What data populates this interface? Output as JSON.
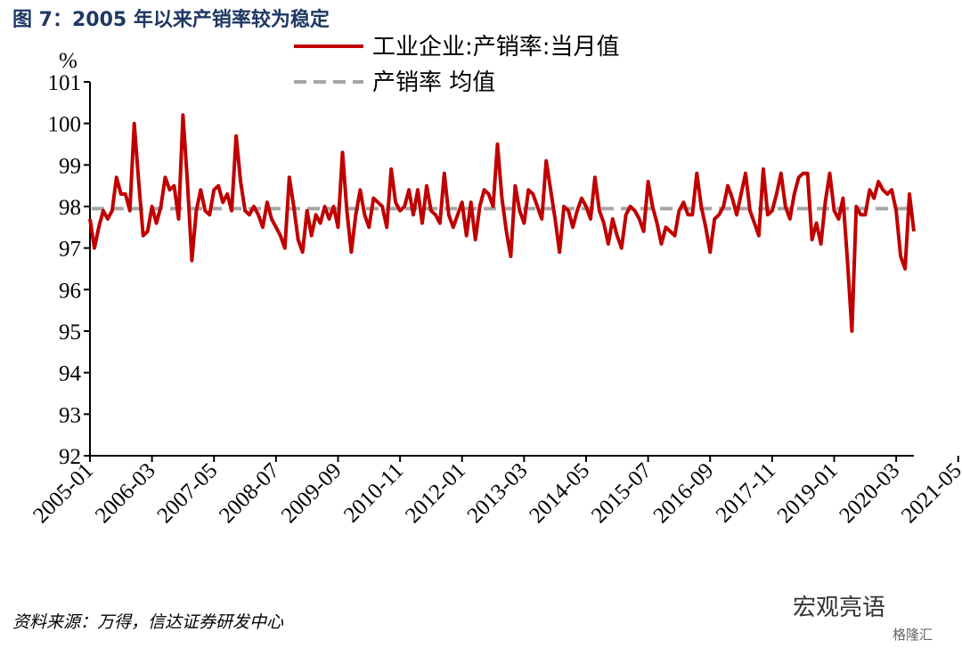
{
  "header": {
    "title": "图 7：2005 年以来产销率较为稳定"
  },
  "footer": {
    "source": "资料来源：万得，信达证券研发中心"
  },
  "watermark": {
    "main": "宏观亮语",
    "sub": "格隆汇"
  },
  "chart_data": {
    "type": "line",
    "yunit": "%",
    "ylim": [
      92,
      101
    ],
    "yticks": [
      92,
      93,
      94,
      95,
      96,
      97,
      98,
      99,
      100,
      101
    ],
    "xtick_labels": [
      "2005-01",
      "2006-03",
      "2007-05",
      "2008-07",
      "2009-09",
      "2010-11",
      "2012-01",
      "2013-03",
      "2014-05",
      "2015-07",
      "2016-09",
      "2017-11",
      "2019-01",
      "2020-03",
      "2021-05"
    ],
    "x_start": "2005-01",
    "x_end": "2021-05",
    "legend_placement": "top",
    "grid": false,
    "series": [
      {
        "name": "工业企业:产销率:当月值",
        "color": "#c00000",
        "style": "solid",
        "values": [
          97.7,
          97.0,
          97.5,
          97.9,
          97.7,
          97.9,
          98.7,
          98.3,
          98.3,
          97.9,
          100.0,
          98.6,
          97.3,
          97.4,
          98.0,
          97.6,
          98.0,
          98.7,
          98.4,
          98.5,
          97.7,
          100.2,
          98.6,
          96.7,
          97.9,
          98.4,
          97.9,
          97.8,
          98.4,
          98.5,
          98.1,
          98.3,
          97.9,
          99.7,
          98.6,
          97.9,
          97.8,
          98.0,
          97.8,
          97.5,
          98.1,
          97.7,
          97.5,
          97.3,
          97.0,
          98.7,
          98.0,
          97.2,
          96.9,
          97.9,
          97.3,
          97.8,
          97.6,
          98.0,
          97.7,
          98.0,
          97.5,
          99.3,
          97.9,
          96.9,
          97.8,
          98.4,
          97.8,
          97.5,
          98.2,
          98.1,
          98.0,
          97.5,
          98.9,
          98.1,
          97.9,
          98.0,
          98.4,
          97.8,
          98.4,
          97.6,
          98.5,
          97.9,
          97.8,
          97.6,
          98.8,
          97.8,
          97.5,
          97.8,
          98.1,
          97.3,
          98.1,
          97.2,
          98.0,
          98.4,
          98.3,
          98.0,
          99.5,
          98.2,
          97.4,
          96.8,
          98.5,
          97.9,
          97.6,
          98.4,
          98.3,
          98.0,
          97.7,
          99.1,
          98.4,
          97.7,
          96.9,
          98.0,
          97.9,
          97.5,
          97.9,
          98.2,
          98.0,
          97.7,
          98.7,
          97.9,
          97.6,
          97.1,
          97.7,
          97.3,
          97.0,
          97.8,
          98.0,
          97.9,
          97.7,
          97.4,
          98.6,
          98.0,
          97.6,
          97.1,
          97.5,
          97.4,
          97.3,
          97.9,
          98.1,
          97.8,
          97.8,
          98.8,
          98.0,
          97.5,
          96.9,
          97.7,
          97.8,
          98.0,
          98.5,
          98.2,
          97.8,
          98.3,
          98.8,
          97.9,
          97.6,
          97.3,
          98.9,
          97.8,
          97.9,
          98.3,
          98.8,
          98.0,
          97.7,
          98.3,
          98.7,
          98.8,
          98.8,
          97.2,
          97.6,
          97.1,
          98.1,
          98.8,
          97.9,
          97.7,
          98.2,
          96.7,
          95.0,
          98.0,
          97.8,
          97.8,
          98.4,
          98.2,
          98.6,
          98.4,
          98.3,
          98.4,
          97.9,
          96.8,
          96.5,
          98.3,
          97.4
        ]
      },
      {
        "name": "产销率 均值",
        "color": "#a6a6a6",
        "style": "dashed",
        "values": [
          97.95
        ]
      }
    ]
  }
}
